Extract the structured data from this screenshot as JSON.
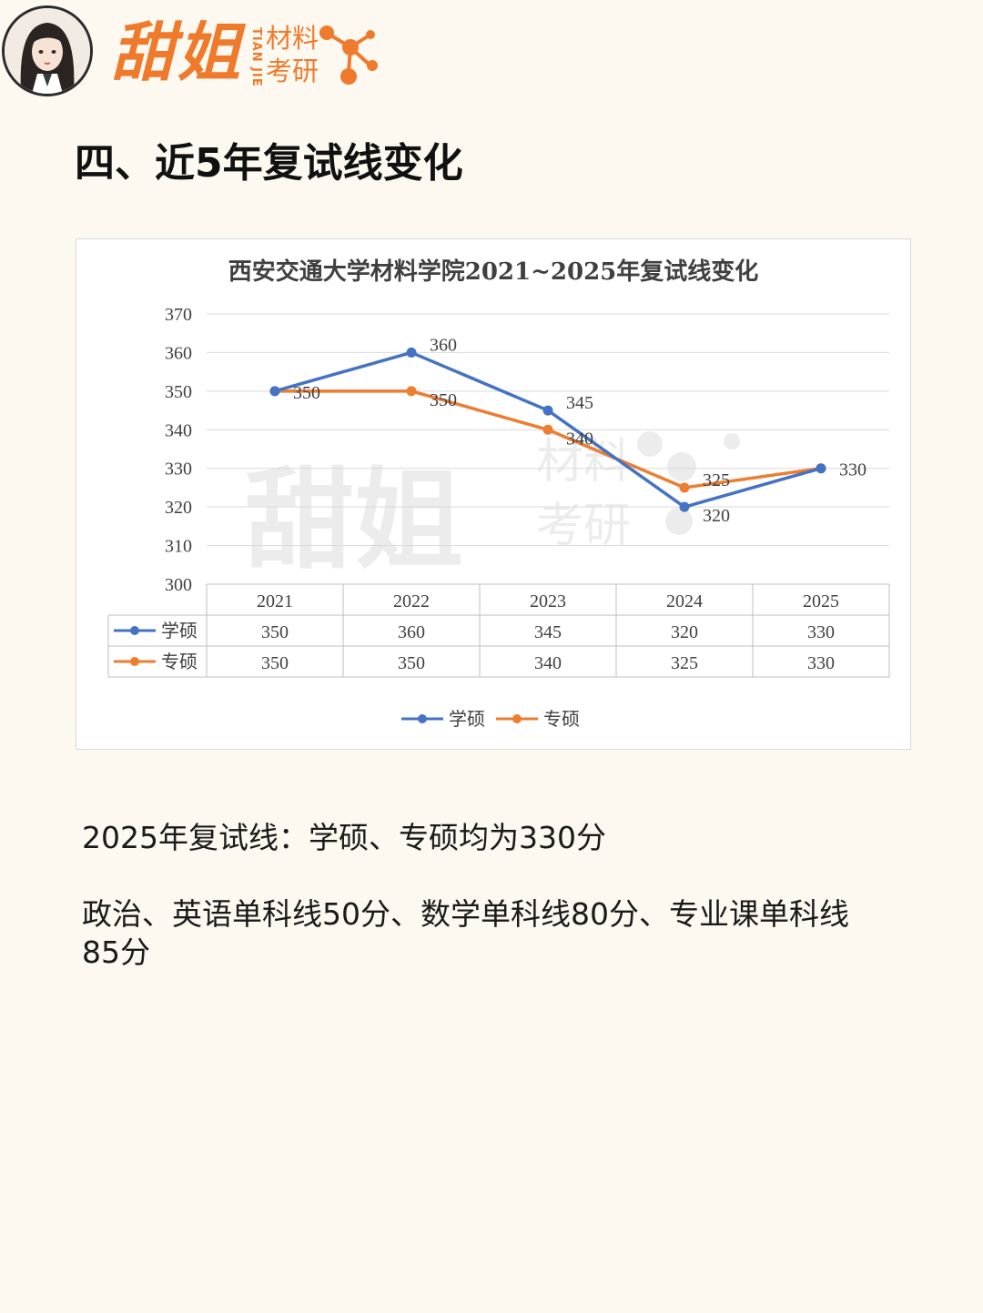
{
  "header": {
    "brand_main": "甜姐",
    "brand_pinyin": "TIAN JIE",
    "brand_sub_1": "材料",
    "brand_sub_2": "考研"
  },
  "section_title": "四、近5年复试线变化",
  "chart_data": {
    "type": "line",
    "title": "西安交通大学材料学院2021~2025年复试线变化",
    "categories": [
      "2021",
      "2022",
      "2023",
      "2024",
      "2025"
    ],
    "series": [
      {
        "name": "学硕",
        "values": [
          350,
          360,
          345,
          320,
          330
        ],
        "color": "#4472c4"
      },
      {
        "name": "专硕",
        "values": [
          350,
          350,
          340,
          325,
          330
        ],
        "color": "#ed7d31"
      }
    ],
    "ylim": [
      300,
      370
    ],
    "yticks": [
      300,
      310,
      320,
      330,
      340,
      350,
      360,
      370
    ],
    "grid": true,
    "legend": "bottom",
    "data_table": true
  },
  "body": {
    "line1": "2025年复试线：学硕、专硕均为330分",
    "line2": "政治、英语单科线50分、数学单科线80分、专业课单科线",
    "line3": "85分"
  }
}
